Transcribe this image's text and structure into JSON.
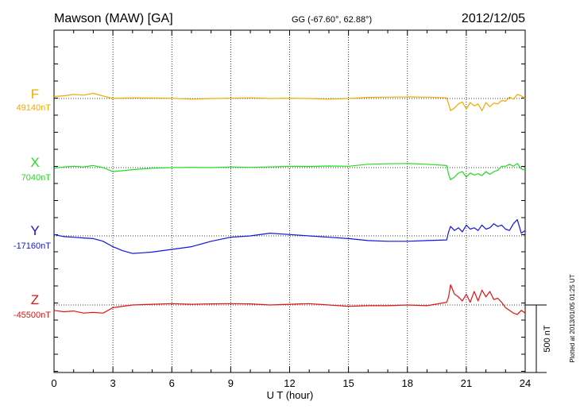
{
  "header": {
    "station": "Mawson (MAW)  [GA]",
    "coords": "GG (-67.60°,  62.88°)",
    "date": "2012/12/05"
  },
  "footer_note": "Plotted at 2013/01/05 01:25 UT",
  "chart_data": {
    "type": "line",
    "xlabel": "U T (hour)",
    "xlim": [
      0,
      24
    ],
    "x_ticks": [
      "0",
      "3",
      "6",
      "9",
      "12",
      "15",
      "18",
      "21",
      "24"
    ],
    "scale_bar": {
      "label": "500 nT",
      "value_nT": 500
    },
    "grid": "vertical dotted at every 3 h",
    "series": [
      {
        "name": "F",
        "baseline": "49140nT",
        "color": "#f5a800",
        "x": [
          0,
          0.5,
          1,
          1.5,
          2,
          2.5,
          3,
          4,
          5,
          6,
          7,
          8,
          9,
          10,
          11,
          12,
          13,
          14,
          15,
          16,
          17,
          18,
          19,
          20,
          20.1,
          20.2,
          20.4,
          20.6,
          20.8,
          21,
          21.2,
          21.4,
          21.6,
          21.8,
          22,
          22.2,
          22.4,
          22.6,
          22.8,
          23,
          23.2,
          23.4,
          23.6,
          23.8,
          24
        ],
        "y": [
          15,
          20,
          30,
          25,
          38,
          18,
          0,
          5,
          3,
          2,
          -5,
          0,
          2,
          5,
          0,
          2,
          0,
          -5,
          0,
          8,
          10,
          12,
          10,
          5,
          -40,
          -90,
          -70,
          -40,
          -25,
          -80,
          -30,
          -55,
          -40,
          -90,
          -30,
          -60,
          -35,
          -40,
          -15,
          -20,
          10,
          -5,
          30,
          20,
          0
        ]
      },
      {
        "name": "X",
        "baseline": "7040nT",
        "color": "#22dd22",
        "x": [
          0,
          0.5,
          1,
          1.5,
          2,
          2.5,
          3,
          4,
          5,
          6,
          7,
          8,
          9,
          10,
          11,
          12,
          13,
          14,
          15,
          16,
          17,
          18,
          19,
          20,
          20.1,
          20.2,
          20.4,
          20.6,
          20.8,
          21,
          21.2,
          21.4,
          21.6,
          21.8,
          22,
          22.2,
          22.4,
          22.6,
          22.8,
          23,
          23.2,
          23.4,
          23.6,
          23.8,
          24
        ],
        "y": [
          -5,
          5,
          10,
          5,
          15,
          0,
          -30,
          -15,
          -5,
          0,
          2,
          0,
          5,
          2,
          5,
          10,
          8,
          12,
          10,
          25,
          28,
          30,
          25,
          15,
          -50,
          -90,
          -70,
          -40,
          -30,
          -70,
          -40,
          -55,
          -45,
          -60,
          -30,
          -50,
          -30,
          -20,
          10,
          10,
          25,
          10,
          30,
          -10,
          -20
        ]
      },
      {
        "name": "Y",
        "baseline": "-17160nT",
        "color": "#1414e0",
        "x": [
          0,
          0.5,
          1,
          1.5,
          2,
          2.5,
          3,
          3.5,
          4,
          4.5,
          5,
          6,
          7,
          8,
          9,
          10,
          11,
          12,
          13,
          14,
          15,
          16,
          17,
          18,
          19,
          20,
          20.1,
          20.2,
          20.4,
          20.6,
          20.8,
          21,
          21.2,
          21.4,
          21.6,
          21.8,
          22,
          22.2,
          22.4,
          22.6,
          22.8,
          23,
          23.2,
          23.4,
          23.6,
          23.8,
          24
        ],
        "y": [
          10,
          -5,
          -10,
          -15,
          -20,
          -40,
          -80,
          -110,
          -130,
          -125,
          -120,
          -100,
          -80,
          -40,
          -10,
          0,
          20,
          10,
          0,
          -10,
          -20,
          -35,
          -40,
          -40,
          -35,
          -30,
          30,
          70,
          40,
          60,
          30,
          80,
          50,
          60,
          40,
          80,
          50,
          60,
          90,
          70,
          80,
          50,
          40,
          90,
          120,
          20,
          40
        ]
      },
      {
        "name": "Z",
        "baseline": "-45500nT",
        "color": "#e01414",
        "x": [
          0,
          0.5,
          1,
          1.5,
          2,
          2.5,
          3,
          4,
          5,
          6,
          7,
          8,
          9,
          10,
          11,
          12,
          13,
          14,
          15,
          16,
          17,
          18,
          19,
          20,
          20.1,
          20.2,
          20.4,
          20.6,
          20.8,
          21,
          21.2,
          21.4,
          21.6,
          21.8,
          22,
          22.2,
          22.4,
          22.6,
          22.8,
          23,
          23.2,
          23.4,
          23.6,
          23.8,
          24
        ],
        "y": [
          -40,
          -50,
          -45,
          -60,
          -55,
          -60,
          -20,
          0,
          5,
          10,
          5,
          8,
          10,
          8,
          0,
          5,
          10,
          0,
          -10,
          -5,
          -5,
          0,
          -5,
          20,
          60,
          150,
          80,
          60,
          30,
          80,
          20,
          100,
          30,
          110,
          60,
          100,
          40,
          50,
          20,
          -20,
          -40,
          -60,
          -70,
          -40,
          -60
        ]
      }
    ]
  }
}
